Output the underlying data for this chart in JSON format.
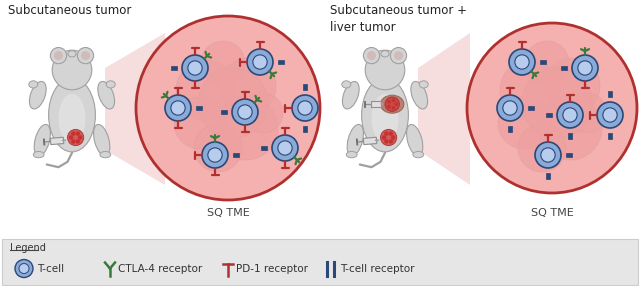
{
  "title_left": "Subcutaneous tumor",
  "title_right": "Subcutaneous tumor +\nliver tumor",
  "sq_tme_label": "SQ TME",
  "legend_title": "Legend",
  "legend_items": [
    "T-cell",
    "CTLA-4 receptor",
    "PD-1 receptor",
    "T-cell receptor"
  ],
  "bg_color": "#ffffff",
  "legend_bg": "#e8e8e8",
  "tumor_fill": "#f5b0b0",
  "tumor_edge": "#b03030",
  "tumor_lobule": "#eea0a0",
  "tcell_fill": "#8aaad8",
  "tcell_edge": "#2a4878",
  "tcell_inner": "#b8ccee",
  "mouse_fill": "#d4d4d4",
  "mouse_shadow": "#b8b8b8",
  "mouse_edge": "#a0a0a0",
  "ctla4_color": "#3a7a3a",
  "pd1_color": "#b03030",
  "tcr_color": "#2a4878",
  "syringe_body": "#d8d8d8",
  "syringe_edge": "#909090",
  "syringe_needle": "#b0b0b0",
  "liver_spot": "#c84040",
  "sq_spot": "#c84040",
  "beam_color": "#f0c8c8"
}
